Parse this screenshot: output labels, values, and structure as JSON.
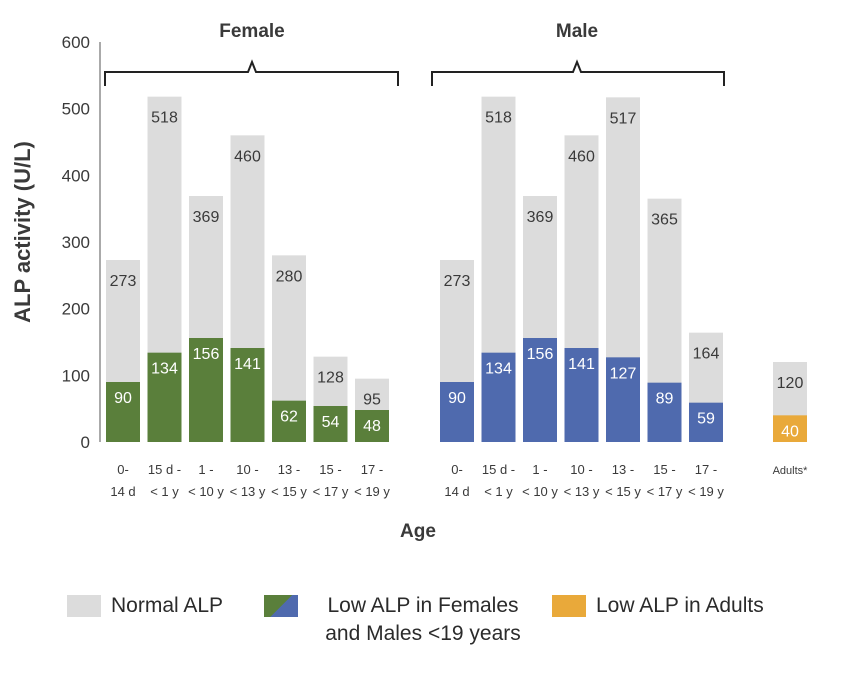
{
  "chart_data": {
    "type": "bar",
    "stacked_overlay": true,
    "ylabel": "ALP activity (U/L)",
    "xlabel": "Age",
    "ylim": [
      0,
      600
    ],
    "yticks": [
      0,
      100,
      200,
      300,
      400,
      500,
      600
    ],
    "grid": false,
    "groups": [
      {
        "name": "Female",
        "categories": [
          [
            "0-",
            "14 d"
          ],
          [
            "15 d -",
            "< 1  y"
          ],
          [
            "1 -",
            "< 10 y"
          ],
          [
            "10 -",
            "< 13 y"
          ],
          [
            "13 -",
            "< 15 y"
          ],
          [
            "15 -",
            "< 17 y"
          ],
          [
            "17 -",
            "< 19 y"
          ]
        ],
        "normal_upper": [
          273,
          518,
          369,
          460,
          280,
          128,
          95
        ],
        "low_limit": [
          90,
          134,
          156,
          141,
          62,
          54,
          48
        ],
        "low_color": "#5a7f3b"
      },
      {
        "name": "Male",
        "categories": [
          [
            "0-",
            "14 d"
          ],
          [
            "15 d -",
            "< 1  y"
          ],
          [
            "1 -",
            "< 10 y"
          ],
          [
            "10 -",
            "< 13 y"
          ],
          [
            "13 -",
            "< 15 y"
          ],
          [
            "15 -",
            "< 17 y"
          ],
          [
            "17 -",
            "< 19 y"
          ]
        ],
        "normal_upper": [
          273,
          518,
          369,
          460,
          517,
          365,
          164
        ],
        "low_limit": [
          90,
          134,
          156,
          141,
          127,
          89,
          59
        ],
        "low_color": "#4f6aae"
      },
      {
        "name": "",
        "categories": [
          [
            "Adults*"
          ]
        ],
        "normal_upper": [
          120
        ],
        "low_limit": [
          40
        ],
        "low_color": "#e9a93a"
      }
    ],
    "normal_color": "#dcdcdc",
    "legend": [
      {
        "label": "Normal ALP",
        "color": "#dcdcdc"
      },
      {
        "label": "Low ALP in Females and Males <19 years",
        "colors": [
          "#5a7f3b",
          "#4f6aae"
        ]
      },
      {
        "label": "Low ALP in Adults",
        "color": "#e9a93a"
      }
    ],
    "legend_position": "bottom"
  }
}
